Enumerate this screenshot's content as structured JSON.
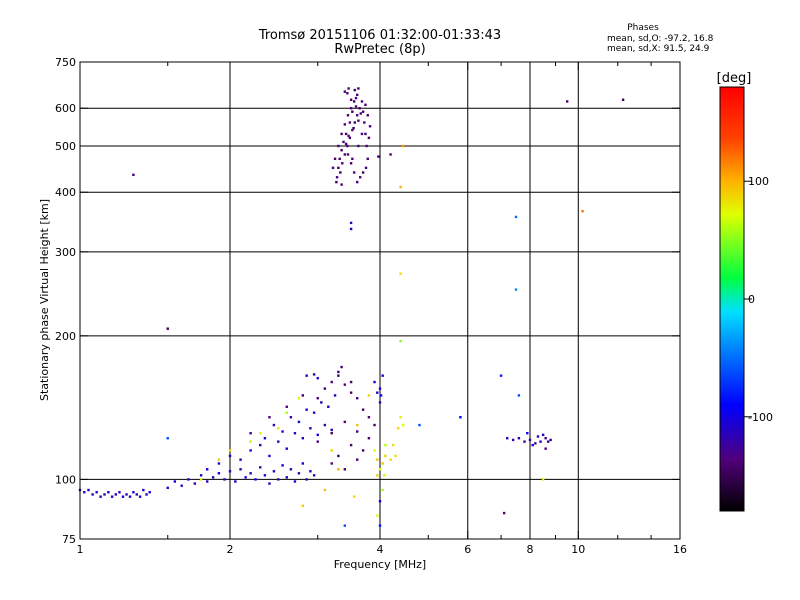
{
  "chart_data": {
    "type": "scatter",
    "title_line1": "Tromsø 20151106 01:32:00-01:33:43",
    "title_line2": "RwPretec (8p)",
    "xlabel": "Frequency [MHz]",
    "ylabel": "Stationary phase Virtual Height [km]",
    "x_scale": "log",
    "y_scale": "log",
    "xlim": [
      1,
      16
    ],
    "ylim": [
      75,
      750
    ],
    "x_ticks": [
      1,
      2,
      4,
      6,
      8,
      10,
      16
    ],
    "x_minor_ticks": [
      1.5,
      3,
      5,
      7,
      9,
      12,
      14
    ],
    "y_ticks": [
      75,
      100,
      200,
      300,
      400,
      500,
      600,
      750
    ],
    "x_grid_lines": [
      2,
      4,
      6,
      8,
      10
    ],
    "y_grid_lines": [
      100,
      200,
      300,
      400,
      500,
      600
    ],
    "grid": true,
    "phases_box": {
      "title": "Phases",
      "line_o": "mean, sd,O: -97.2, 16.8",
      "line_x": "mean, sd,X:  91.5, 24.9"
    },
    "colorbar": {
      "label": "[deg]",
      "range": [
        -180,
        180
      ],
      "ticks": [
        100,
        0,
        -100
      ]
    },
    "series": [
      {
        "name": "",
        "points": [
          [
            1.0,
            95,
            -110
          ],
          [
            1.02,
            94,
            -115
          ],
          [
            1.04,
            95,
            -105
          ],
          [
            1.06,
            93,
            -120
          ],
          [
            1.08,
            94,
            -112
          ],
          [
            1.1,
            92,
            -108
          ],
          [
            1.12,
            93,
            -118
          ],
          [
            1.14,
            94,
            -106
          ],
          [
            1.16,
            92,
            -122
          ],
          [
            1.18,
            93,
            -110
          ],
          [
            1.2,
            94,
            -115
          ],
          [
            1.22,
            92,
            -104
          ],
          [
            1.24,
            93,
            -119
          ],
          [
            1.26,
            92,
            -111
          ],
          [
            1.28,
            94,
            -107
          ],
          [
            1.3,
            93,
            -121
          ],
          [
            1.32,
            92,
            -113
          ],
          [
            1.34,
            95,
            -109
          ],
          [
            1.36,
            93,
            -117
          ],
          [
            1.38,
            94,
            -103
          ],
          [
            1.5,
            96,
            -110
          ],
          [
            1.55,
            99,
            -102
          ],
          [
            1.6,
            97,
            -115
          ],
          [
            1.65,
            100,
            -108
          ],
          [
            1.7,
            98,
            -120
          ],
          [
            1.75,
            102,
            -105
          ],
          [
            1.8,
            99,
            -112
          ],
          [
            1.85,
            101,
            -118
          ],
          [
            1.9,
            103,
            -100
          ],
          [
            1.95,
            100,
            -110
          ],
          [
            2.0,
            104,
            -114
          ],
          [
            2.05,
            99,
            -106
          ],
          [
            2.1,
            105,
            -119
          ],
          [
            2.15,
            101,
            -101
          ],
          [
            2.2,
            103,
            -116
          ],
          [
            2.25,
            100,
            -108
          ],
          [
            2.3,
            106,
            -122
          ],
          [
            2.35,
            102,
            -104
          ],
          [
            2.4,
            98,
            -113
          ],
          [
            2.45,
            104,
            -109
          ],
          [
            2.5,
            100,
            -118
          ],
          [
            2.55,
            107,
            -103
          ],
          [
            2.6,
            101,
            -111
          ],
          [
            2.65,
            105,
            -120
          ],
          [
            2.7,
            99,
            -106
          ],
          [
            2.75,
            103,
            -115
          ],
          [
            2.8,
            108,
            -102
          ],
          [
            2.85,
            100,
            -119
          ],
          [
            2.9,
            104,
            -107
          ],
          [
            2.95,
            102,
            -114
          ],
          [
            1.8,
            105,
            -100
          ],
          [
            1.9,
            108,
            -112
          ],
          [
            2.0,
            112,
            -106
          ],
          [
            2.1,
            110,
            -118
          ],
          [
            2.2,
            115,
            -104
          ],
          [
            2.3,
            118,
            -113
          ],
          [
            2.4,
            112,
            -108
          ],
          [
            2.5,
            120,
            -120
          ],
          [
            2.6,
            116,
            -102
          ],
          [
            2.7,
            125,
            -115
          ],
          [
            2.8,
            122,
            -109
          ],
          [
            2.9,
            128,
            -117
          ],
          [
            3.0,
            124,
            -105
          ],
          [
            3.1,
            130,
            -119
          ],
          [
            3.2,
            127,
            -111
          ],
          [
            2.35,
            122,
            -101
          ],
          [
            2.45,
            130,
            -116
          ],
          [
            2.55,
            126,
            -107
          ],
          [
            2.65,
            135,
            -121
          ],
          [
            2.75,
            132,
            -103
          ],
          [
            2.85,
            140,
            -114
          ],
          [
            2.95,
            138,
            -110
          ],
          [
            3.05,
            145,
            -118
          ],
          [
            3.15,
            142,
            -106
          ],
          [
            3.25,
            150,
            -112
          ],
          [
            2.2,
            125,
            -130
          ],
          [
            2.4,
            135,
            -140
          ],
          [
            2.6,
            142,
            -135
          ],
          [
            2.8,
            150,
            -145
          ],
          [
            3.0,
            148,
            -138
          ],
          [
            3.1,
            155,
            -142
          ],
          [
            3.2,
            160,
            -132
          ],
          [
            3.3,
            165,
            -148
          ],
          [
            3.4,
            158,
            -136
          ],
          [
            3.5,
            152,
            -144
          ],
          [
            3.6,
            148,
            -134
          ],
          [
            3.7,
            140,
            -146
          ],
          [
            3.8,
            135,
            -139
          ],
          [
            3.9,
            130,
            -143
          ],
          [
            3.0,
            120,
            -131
          ],
          [
            3.2,
            125,
            -147
          ],
          [
            3.4,
            132,
            -137
          ],
          [
            3.6,
            126,
            -141
          ],
          [
            3.8,
            122,
            -133
          ],
          [
            3.3,
            112,
            -145
          ],
          [
            3.5,
            118,
            -138
          ],
          [
            3.7,
            115,
            -142
          ],
          [
            3.2,
            108,
            -136
          ],
          [
            3.4,
            105,
            -148
          ],
          [
            3.6,
            110,
            -134
          ],
          [
            2.85,
            165,
            -115
          ],
          [
            2.95,
            166,
            -120
          ],
          [
            3.0,
            163,
            -110
          ],
          [
            3.35,
            172,
            -140
          ],
          [
            3.3,
            168,
            -130
          ],
          [
            3.5,
            160,
            -145
          ],
          [
            3.9,
            160,
            -100
          ],
          [
            4.0,
            155,
            -95
          ],
          [
            4.05,
            165,
            -105
          ],
          [
            4.02,
            150,
            -98
          ],
          [
            3.95,
            152,
            -108
          ],
          [
            4.0,
            145,
            -112
          ],
          [
            3.4,
            555,
            -130
          ],
          [
            3.45,
            580,
            -140
          ],
          [
            3.5,
            600,
            -135
          ],
          [
            3.55,
            620,
            -145
          ],
          [
            3.6,
            640,
            -138
          ],
          [
            3.62,
            660,
            -142
          ],
          [
            3.58,
            630,
            -132
          ],
          [
            3.52,
            590,
            -148
          ],
          [
            3.48,
            560,
            -136
          ],
          [
            3.42,
            530,
            -144
          ],
          [
            3.38,
            510,
            -134
          ],
          [
            3.35,
            490,
            -146
          ],
          [
            3.32,
            470,
            -139
          ],
          [
            3.3,
            450,
            -143
          ],
          [
            3.28,
            430,
            -131
          ],
          [
            3.33,
            440,
            -147
          ],
          [
            3.36,
            460,
            -137
          ],
          [
            3.4,
            480,
            -141
          ],
          [
            3.44,
            500,
            -133
          ],
          [
            3.48,
            520,
            -145
          ],
          [
            3.52,
            540,
            -138
          ],
          [
            3.56,
            560,
            -142
          ],
          [
            3.6,
            580,
            -136
          ],
          [
            3.64,
            600,
            -148
          ],
          [
            3.68,
            620,
            -134
          ],
          [
            3.7,
            590,
            -140
          ],
          [
            3.72,
            560,
            -135
          ],
          [
            3.74,
            530,
            -144
          ],
          [
            3.76,
            500,
            -139
          ],
          [
            3.78,
            470,
            -143
          ],
          [
            3.75,
            450,
            -131
          ],
          [
            3.7,
            440,
            -147
          ],
          [
            3.65,
            430,
            -137
          ],
          [
            3.6,
            420,
            -141
          ],
          [
            3.55,
            440,
            -133
          ],
          [
            3.5,
            460,
            -145
          ],
          [
            3.45,
            480,
            -138
          ],
          [
            3.42,
            505,
            -142
          ],
          [
            3.46,
            525,
            -136
          ],
          [
            3.54,
            545,
            -148
          ],
          [
            3.62,
            565,
            -134
          ],
          [
            3.66,
            585,
            -140
          ],
          [
            3.58,
            605,
            -135
          ],
          [
            3.5,
            625,
            -144
          ],
          [
            3.44,
            645,
            -139
          ],
          [
            3.25,
            470,
            -143
          ],
          [
            3.22,
            450,
            -131
          ],
          [
            3.27,
            420,
            -147
          ],
          [
            3.35,
            415,
            -137
          ],
          [
            3.8,
            520,
            -141
          ],
          [
            3.82,
            550,
            -133
          ],
          [
            3.78,
            580,
            -145
          ],
          [
            3.74,
            610,
            -138
          ],
          [
            3.4,
            650,
            -142
          ],
          [
            3.46,
            660,
            -136
          ],
          [
            3.56,
            655,
            -148
          ],
          [
            3.52,
            470,
            -134
          ],
          [
            3.62,
            500,
            -140
          ],
          [
            3.68,
            530,
            -135
          ],
          [
            3.3,
            500,
            -144
          ],
          [
            3.35,
            530,
            -139
          ],
          [
            4.4,
            135,
            80
          ],
          [
            4.45,
            130,
            75
          ],
          [
            4.35,
            128,
            85
          ],
          [
            4.3,
            112,
            85
          ],
          [
            4.25,
            118,
            82
          ],
          [
            4.2,
            110,
            88
          ],
          [
            4.1,
            112,
            90
          ],
          [
            4.05,
            108,
            92
          ],
          [
            3.95,
            110,
            95
          ],
          [
            3.9,
            115,
            70
          ],
          [
            4.05,
            95,
            60
          ],
          [
            4.08,
            102,
            65
          ],
          [
            3.95,
            84,
            75
          ],
          [
            4.4,
            195,
            50
          ],
          [
            4.4,
            270,
            85
          ],
          [
            4.4,
            410,
            100
          ],
          [
            4.45,
            500,
            110
          ],
          [
            3.8,
            150,
            90
          ],
          [
            3.6,
            130,
            95
          ],
          [
            3.2,
            115,
            85
          ],
          [
            2.8,
            88,
            90
          ],
          [
            2.75,
            148,
            70
          ],
          [
            2.6,
            138,
            60
          ],
          [
            2.5,
            128,
            80
          ],
          [
            2.3,
            125,
            75
          ],
          [
            2.2,
            120,
            65
          ],
          [
            2.0,
            115,
            85
          ],
          [
            1.9,
            110,
            90
          ],
          [
            1.75,
            100,
            80
          ],
          [
            3.1,
            95,
            95
          ],
          [
            3.3,
            105,
            100
          ],
          [
            3.55,
            92,
            85
          ],
          [
            4.0,
            105,
            70
          ],
          [
            4.1,
            118,
            62
          ],
          [
            3.95,
            102,
            90
          ],
          [
            7.2,
            122,
            -115
          ],
          [
            7.4,
            121,
            -120
          ],
          [
            7.6,
            122,
            -110
          ],
          [
            7.8,
            120,
            -125
          ],
          [
            8.0,
            121,
            -118
          ],
          [
            8.2,
            119,
            -122
          ],
          [
            8.4,
            120,
            -112
          ],
          [
            8.6,
            122,
            -128
          ],
          [
            8.8,
            121,
            -115
          ],
          [
            8.1,
            118,
            -105
          ],
          [
            8.3,
            123,
            -118
          ],
          [
            8.7,
            120,
            -130
          ],
          [
            7.9,
            125,
            -100
          ],
          [
            8.5,
            124,
            -110
          ],
          [
            8.6,
            116,
            -135
          ],
          [
            7.6,
            150,
            -60
          ],
          [
            1.28,
            435,
            -140
          ],
          [
            1.5,
            207,
            -150
          ],
          [
            1.5,
            122,
            -60
          ],
          [
            3.5,
            345,
            -120
          ],
          [
            3.5,
            335,
            -110
          ],
          [
            3.4,
            80,
            -60
          ],
          [
            3.97,
            475,
            -130
          ],
          [
            4.2,
            480,
            -140
          ],
          [
            4.8,
            130,
            -60
          ],
          [
            5.8,
            135,
            -90
          ],
          [
            7.0,
            165,
            -80
          ],
          [
            7.1,
            85,
            -140
          ],
          [
            7.5,
            355,
            -50
          ],
          [
            7.5,
            250,
            -40
          ],
          [
            8.5,
            100,
            80
          ],
          [
            9.5,
            620,
            -140
          ],
          [
            10.2,
            365,
            120
          ],
          [
            12.3,
            625,
            -150
          ],
          [
            4.0,
            90,
            -100
          ],
          [
            4.0,
            80,
            -80
          ]
        ]
      }
    ]
  }
}
